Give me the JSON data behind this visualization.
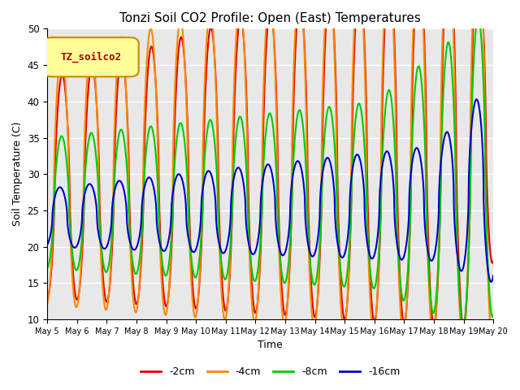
{
  "title": "Tonzi Soil CO2 Profile: Open (East) Temperatures",
  "xlabel": "Time",
  "ylabel": "Soil Temperature (C)",
  "ylim": [
    10,
    50
  ],
  "background_color": "#e8e8e8",
  "grid_color": "white",
  "legend_box_label": "TZ_soilco2",
  "legend_box_color": "#ffff99",
  "legend_box_edge": "#cc8800",
  "series_colors": [
    "#dd0000",
    "#ff8800",
    "#00cc00",
    "#0000cc"
  ],
  "series_labels": [
    "-2cm",
    "-4cm",
    "-8cm",
    "-16cm"
  ],
  "tick_labels": [
    "May 5",
    "May 6",
    "May 7",
    "May 8",
    "May 9",
    "May 10",
    "May 11",
    "May 12",
    "May 13",
    "May 14",
    "May 15",
    "May 16",
    "May 17",
    "May 18",
    "May 19",
    "May 20"
  ],
  "tick_positions": [
    0,
    1,
    2,
    3,
    4,
    5,
    6,
    7,
    8,
    9,
    10,
    11,
    12,
    13,
    14,
    15
  ],
  "yticks": [
    10,
    15,
    20,
    25,
    30,
    35,
    40,
    45,
    50
  ]
}
